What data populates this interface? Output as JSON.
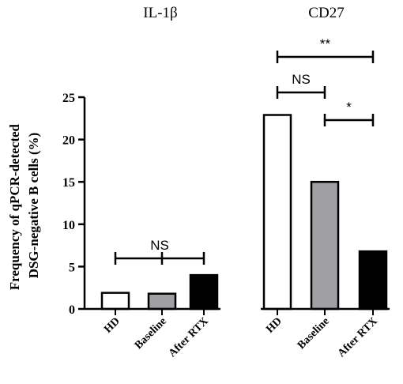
{
  "chart_data": {
    "type": "bar",
    "ylabel_line1": "Frequency of qPCR-detected",
    "ylabel_line2": "DSG-negative B cells (%)",
    "ylim": [
      0,
      25
    ],
    "yticks": [
      "0",
      "5",
      "10",
      "15",
      "20",
      "25"
    ],
    "grid": false,
    "groups": [
      {
        "title": "IL-1β",
        "categories": [
          "HD",
          "Baseline",
          "After RTX"
        ],
        "values": [
          1.9,
          1.8,
          4.0
        ],
        "colors": [
          "#ffffff",
          "#a0a0a4",
          "#000000"
        ]
      },
      {
        "title": "CD27",
        "categories": [
          "HD",
          "Baseline",
          "After RTX"
        ],
        "values": [
          22.9,
          15.0,
          6.8
        ],
        "colors": [
          "#ffffff",
          "#a0a0a4",
          "#000000"
        ]
      }
    ],
    "annotations": [
      {
        "group": 0,
        "from": 0,
        "to": 2,
        "label": "NS",
        "type": "three-point"
      },
      {
        "group": 1,
        "from": 0,
        "to": 2,
        "label": "**"
      },
      {
        "group": 1,
        "from": 0,
        "to": 1,
        "label": "NS"
      },
      {
        "group": 1,
        "from": 1,
        "to": 2,
        "label": "*"
      }
    ]
  }
}
